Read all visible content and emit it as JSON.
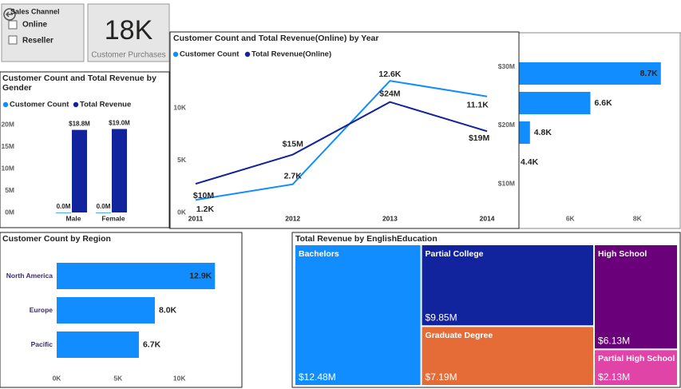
{
  "slicer": {
    "title": "Sales Channel",
    "options": [
      "Online",
      "Reseller"
    ]
  },
  "card": {
    "value": "18K",
    "label": "Customer Purchases"
  },
  "chart_data": [
    {
      "type": "bar",
      "title": "Customer Count and Total Revenue by Gender",
      "categories": [
        "Male",
        "Female"
      ],
      "series": [
        {
          "name": "Customer Count",
          "color": "#118dff",
          "values": [
            9000,
            9300
          ],
          "value_labels": [
            "0.0M",
            "0.0M"
          ]
        },
        {
          "name": "Total Revenue",
          "color": "#12239e",
          "values": [
            18800000,
            19000000
          ],
          "value_labels": [
            "$18.8M",
            "$19.0M"
          ]
        }
      ],
      "ylim": [
        0,
        22000000
      ],
      "yticks": [
        {
          "value": 0,
          "label": "0M"
        },
        {
          "value": 5000000,
          "label": "5M"
        },
        {
          "value": 10000000,
          "label": "10M"
        },
        {
          "value": 15000000,
          "label": "15M"
        },
        {
          "value": 20000000,
          "label": "20M"
        }
      ]
    },
    {
      "type": "line",
      "title": "Customer Count and Total Revenue(Online) by Year",
      "categories": [
        "2011",
        "2012",
        "2013",
        "2014"
      ],
      "series": [
        {
          "name": "Customer Count",
          "color": "#118dff",
          "values": [
            1200,
            2700,
            12600,
            11100
          ],
          "value_labels": [
            "1.2K",
            "2.7K",
            "12.6K",
            "11.1K"
          ]
        },
        {
          "name": "Total Revenue(Online)",
          "color": "#12239e",
          "axis": "y2",
          "values": [
            10000000,
            15000000,
            24000000,
            19000000
          ],
          "value_labels": [
            "$10M",
            "$15M",
            "$24M",
            "$19M"
          ]
        }
      ],
      "ylim": [
        0,
        14600
      ],
      "yticks": [
        {
          "value": 0,
          "label": "0K"
        },
        {
          "value": 5000,
          "label": "5K"
        },
        {
          "value": 10000,
          "label": "10K"
        }
      ],
      "y2lim": [
        5100000,
        31200000
      ],
      "y2ticks": [
        {
          "value": 10000000,
          "label": "$10M"
        },
        {
          "value": 20000000,
          "label": "$20M"
        },
        {
          "value": 30000000,
          "label": "$30M"
        }
      ]
    },
    {
      "type": "barh",
      "categories": [
        null,
        null,
        null,
        null
      ],
      "values": [
        8700,
        6600,
        4800,
        4400
      ],
      "value_labels": [
        "8.7K",
        "6.6K",
        "4.8K",
        "4.4K"
      ],
      "color": "#118dff",
      "xlim": [
        0,
        9300
      ],
      "xticks": [
        {
          "value": 6000,
          "label": "6K"
        },
        {
          "value": 8000,
          "label": "8K"
        }
      ]
    },
    {
      "type": "barh",
      "title": "Customer Count by Region",
      "categories": [
        "North America",
        "Europe",
        "Pacific"
      ],
      "values": [
        12900,
        8000,
        6700
      ],
      "value_labels": [
        "12.9K",
        "8.0K",
        "6.7K"
      ],
      "color": "#118dff",
      "xlim": [
        0,
        14900
      ],
      "xticks": [
        {
          "value": 0,
          "label": "0K"
        },
        {
          "value": 5000,
          "label": "5K"
        },
        {
          "value": 10000,
          "label": "10K"
        }
      ]
    },
    {
      "type": "treemap",
      "title": "Total Revenue by EnglishEducation",
      "categories": [
        "Bachelors",
        "Partial College",
        "Graduate Degree",
        "High School",
        "Partial High School"
      ],
      "values": [
        12.48,
        9.85,
        7.19,
        6.13,
        2.13
      ],
      "value_labels": [
        "$12.48M",
        "$9.85M",
        "$7.19M",
        "$6.13M",
        "$2.13M"
      ],
      "colors": [
        "#118dff",
        "#12239e",
        "#e66c37",
        "#6b007b",
        "#e044a7"
      ]
    }
  ]
}
